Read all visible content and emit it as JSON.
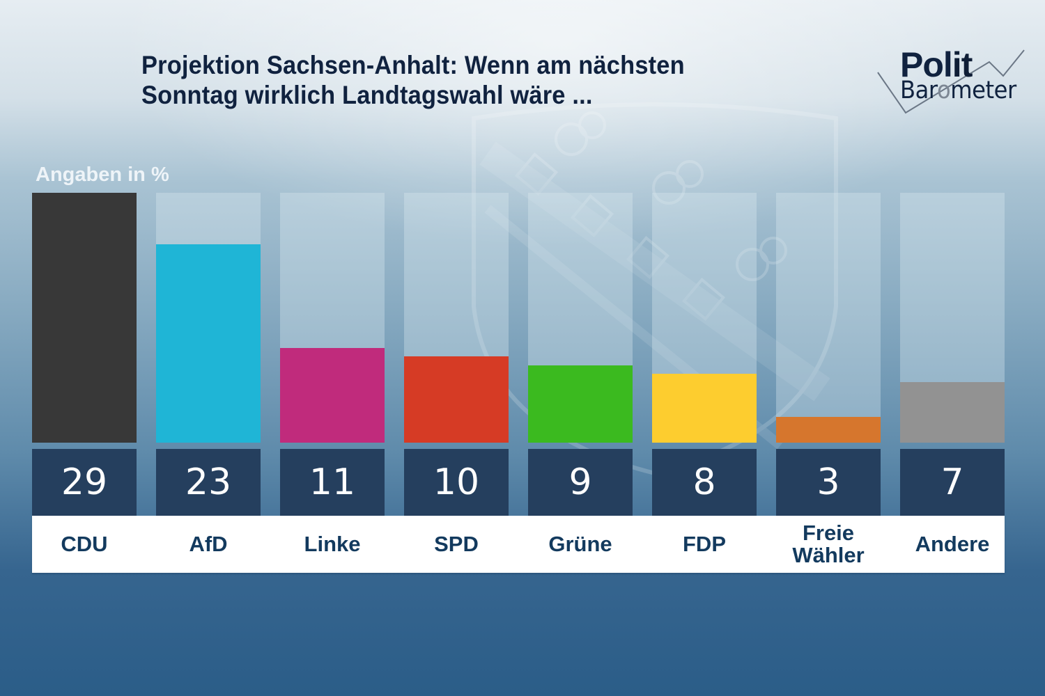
{
  "header": {
    "title_line1": "Projektion Sachsen-Anhalt: Wenn am nächsten",
    "title_line2": "Sonntag wirklich Landtagswahl wäre ..."
  },
  "logo": {
    "word1_part1": "Pol",
    "word1_part2": "it",
    "word2_part1": "Bar",
    "word2_part2": "o",
    "word2_part3": "meter"
  },
  "chart_data": {
    "type": "bar",
    "title": "Projektion Sachsen-Anhalt: Wenn am nächsten Sonntag wirklich Landtagswahl wäre ...",
    "unit_label": "Angaben in %",
    "xlabel": "",
    "ylabel": "Angaben in %",
    "ylim": [
      0,
      29
    ],
    "grid": false,
    "legend": "none",
    "categories": [
      "CDU",
      "AfD",
      "Linke",
      "SPD",
      "Grüne",
      "FDP",
      "Freie Wähler",
      "Andere"
    ],
    "values": [
      29,
      23,
      11,
      10,
      9,
      8,
      3,
      7
    ],
    "colors": [
      "#383838",
      "#1fb5d6",
      "#c02b7c",
      "#d63b25",
      "#3bba1f",
      "#fdcd2f",
      "#d6762d",
      "#929292"
    ],
    "label_lines": [
      [
        "CDU"
      ],
      [
        "AfD"
      ],
      [
        "Linke"
      ],
      [
        "SPD"
      ],
      [
        "Grüne"
      ],
      [
        "FDP"
      ],
      [
        "Freie",
        "Wähler"
      ],
      [
        "Andere"
      ]
    ]
  }
}
